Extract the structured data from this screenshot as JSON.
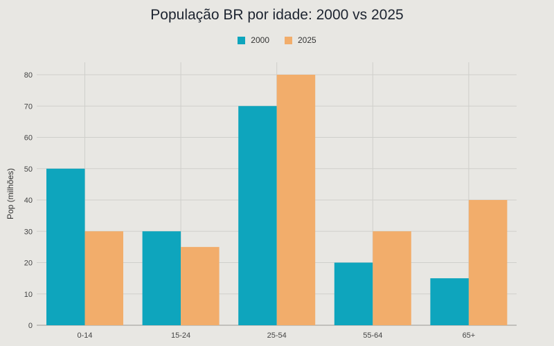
{
  "chart_data": {
    "type": "bar",
    "title": "População BR por idade: 2000 vs 2025",
    "xlabel": "",
    "ylabel": "Pop (milhões)",
    "categories": [
      "0-14",
      "15-24",
      "25-54",
      "55-64",
      "65+"
    ],
    "series": [
      {
        "name": "2000",
        "values": [
          50,
          30,
          70,
          20,
          15
        ],
        "color": "#0ea5bd"
      },
      {
        "name": "2025",
        "values": [
          30,
          25,
          80,
          30,
          40
        ],
        "color": "#f2ad6b"
      }
    ],
    "ylim": [
      0,
      80
    ],
    "yticks": [
      0,
      10,
      20,
      30,
      40,
      50,
      60,
      70,
      80
    ],
    "grid": true,
    "legend_position": "top-center"
  }
}
